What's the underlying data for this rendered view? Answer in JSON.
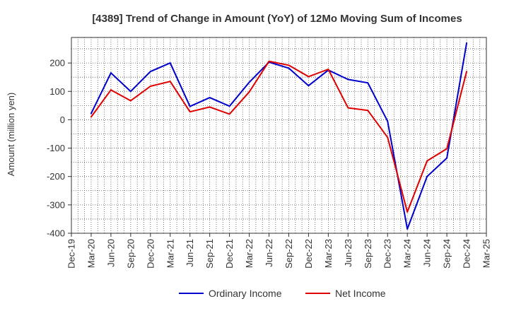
{
  "chart_data": {
    "type": "line",
    "title": "[4389]  Trend of Change in Amount (YoY) of 12Mo Moving Sum of Incomes",
    "xlabel": "",
    "ylabel": "Amount (million yen)",
    "ylim": [
      -400,
      290
    ],
    "yticks": [
      -400,
      -300,
      -200,
      -100,
      0,
      100,
      200
    ],
    "x_tick_labels": [
      "Dec-19",
      "Mar-20",
      "Jun-20",
      "Sep-20",
      "Dec-20",
      "Mar-21",
      "Jun-21",
      "Sep-21",
      "Dec-21",
      "Mar-22",
      "Jun-22",
      "Sep-22",
      "Dec-22",
      "Mar-23",
      "Jun-23",
      "Sep-23",
      "Dec-23",
      "Mar-24",
      "Jun-24",
      "Sep-24",
      "Dec-24",
      "Mar-25"
    ],
    "x": [
      "Mar-20",
      "Jun-20",
      "Sep-20",
      "Dec-20",
      "Mar-21",
      "Jun-21",
      "Sep-21",
      "Dec-21",
      "Mar-22",
      "Jun-22",
      "Sep-22",
      "Dec-22",
      "Mar-23",
      "Jun-23",
      "Sep-23",
      "Dec-23",
      "Mar-24",
      "Jun-24",
      "Sep-24",
      "Dec-24"
    ],
    "grid": true,
    "legend_position": "bottom",
    "series": [
      {
        "name": "Ordinary Income",
        "color": "#0000cc",
        "values": [
          22,
          165,
          100,
          170,
          200,
          47,
          78,
          48,
          132,
          203,
          182,
          120,
          175,
          142,
          130,
          -5,
          -385,
          -200,
          -135,
          270
        ]
      },
      {
        "name": "Net Income",
        "color": "#e00000",
        "values": [
          10,
          105,
          67,
          118,
          135,
          28,
          45,
          20,
          98,
          206,
          192,
          152,
          178,
          42,
          33,
          -62,
          -325,
          -145,
          -102,
          170
        ]
      }
    ]
  }
}
